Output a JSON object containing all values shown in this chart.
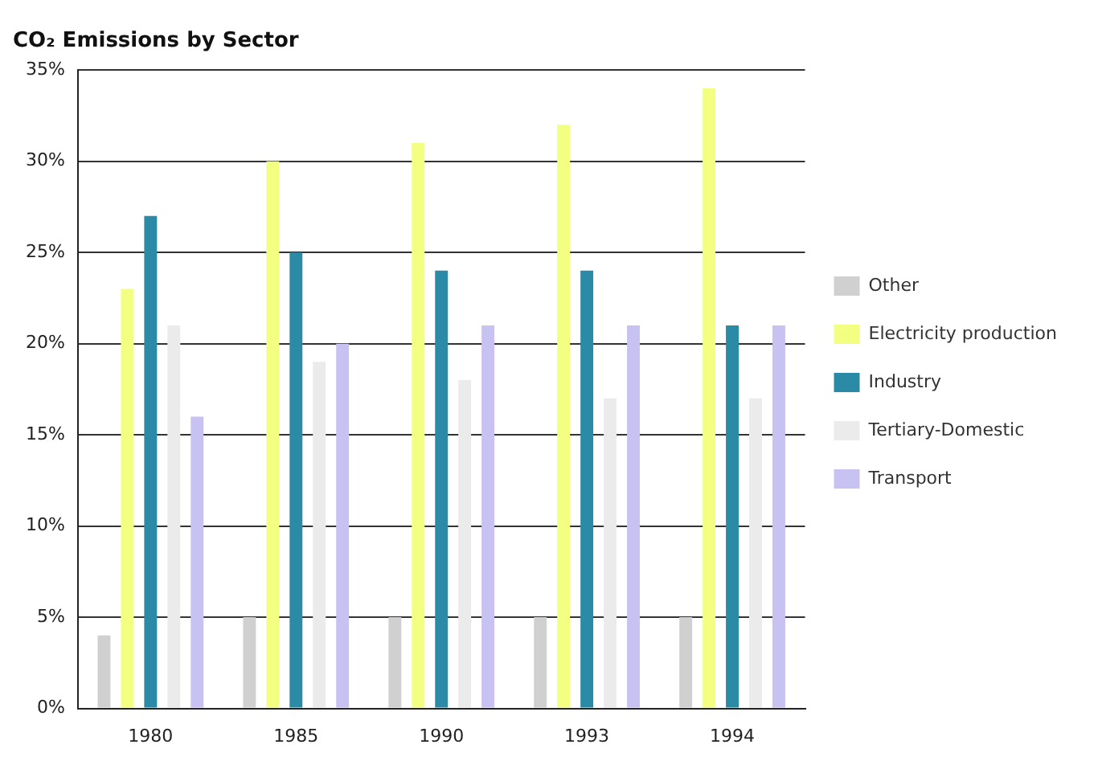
{
  "chart_data": {
    "type": "bar",
    "title": "CO₂ Emissions by Sector",
    "categories": [
      "1980",
      "1985",
      "1990",
      "1993",
      "1994"
    ],
    "series": [
      {
        "name": "Other",
        "color": "#d0d0d0",
        "values": [
          4,
          5,
          5,
          5,
          5
        ]
      },
      {
        "name": "Electricity production",
        "color": "#f2ff80",
        "values": [
          23,
          30,
          31,
          32,
          34
        ]
      },
      {
        "name": "Industry",
        "color": "#2b8aa6",
        "values": [
          27,
          25,
          24,
          24,
          21
        ]
      },
      {
        "name": "Tertiary-Domestic",
        "color": "#ebebeb",
        "values": [
          21,
          19,
          18,
          17,
          17
        ]
      },
      {
        "name": "Transport",
        "color": "#c8c2f2",
        "values": [
          16,
          20,
          21,
          21,
          21
        ]
      }
    ],
    "ylim": [
      0,
      35
    ],
    "yticks": [
      {
        "value": 0,
        "label": "0%"
      },
      {
        "value": 5,
        "label": "5%"
      },
      {
        "value": 10,
        "label": "10%"
      },
      {
        "value": 15,
        "label": "15%"
      },
      {
        "value": 20,
        "label": "20%"
      },
      {
        "value": 25,
        "label": "25%"
      },
      {
        "value": 30,
        "label": "30%"
      },
      {
        "value": 35,
        "label": "35%"
      }
    ],
    "grid": "y",
    "legend": "right"
  }
}
